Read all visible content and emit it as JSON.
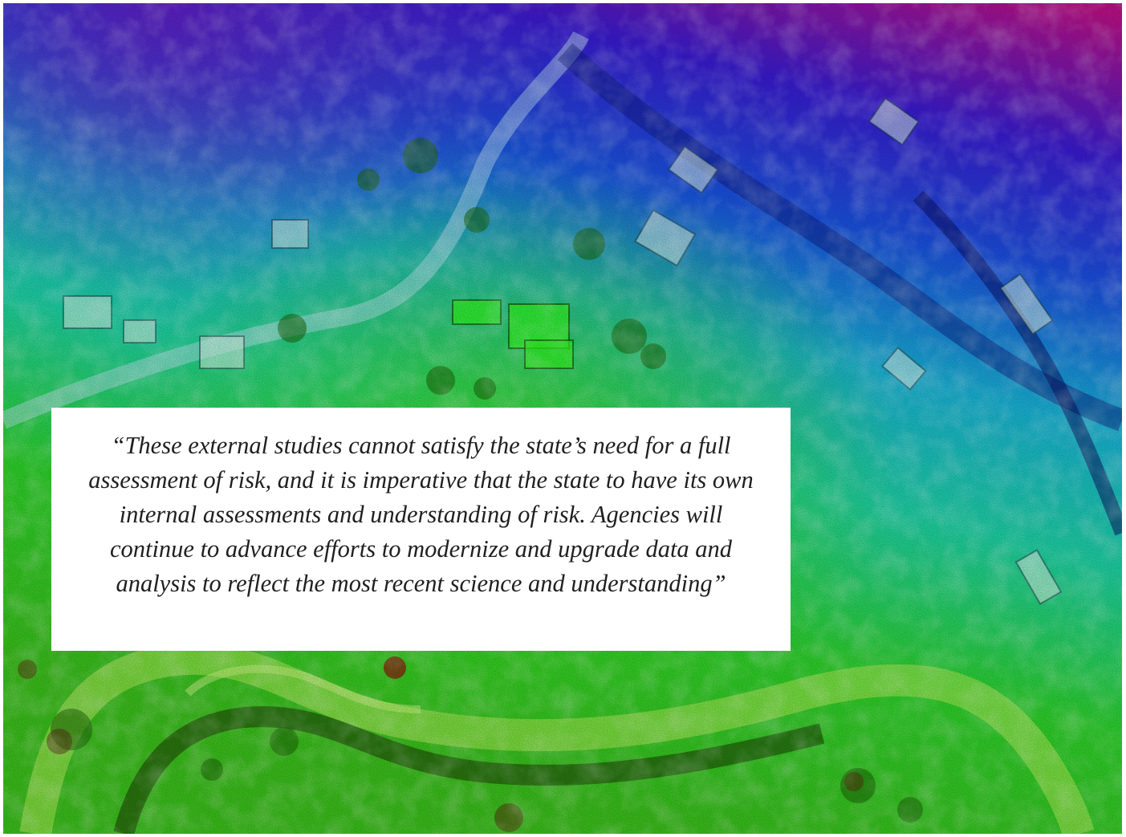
{
  "image": {
    "subject": "aerial-elevation-map",
    "colors": {
      "low": "#2ecc1a",
      "mid": "#1fd6c6",
      "high": "#1a2ae0",
      "peak": "#c2108e"
    }
  },
  "quote": {
    "text": "“These external studies cannot satisfy the state’s need for a full assessment of risk, and it is imperative that the state to have its own internal assessments and understanding of risk. Agencies will continue to advance efforts to modernize and upgrade data and analysis to reflect the most recent science and understanding”"
  }
}
